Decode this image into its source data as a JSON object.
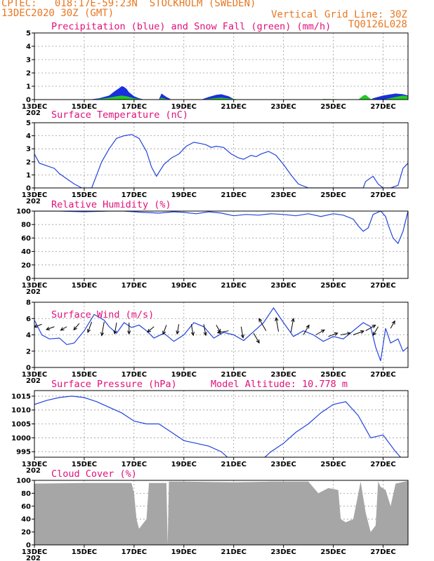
{
  "header": {
    "line1_left": "CPTEC:   018:17E-59:23N  STOCKHOLM (SWEDEN)",
    "line2_left": "13DEC2020 30Z (GMT)",
    "line2_right": "Vertical Grid Line: 30Z",
    "line3_right": "TQ0126L028"
  },
  "colors": {
    "header": "#e87722",
    "title": "#e0107a",
    "line": "#2244dd",
    "precip": "#1a2fe0",
    "snow": "#22cc22",
    "cloud": "#a6a6a6"
  },
  "x_axis": {
    "start": "13DEC2020 00Z",
    "range_days": [
      0,
      15
    ],
    "tick_days": [
      0,
      2,
      4,
      6,
      8,
      10,
      12,
      14
    ],
    "tick_labels": [
      "13DEC",
      "15DEC",
      "17DEC",
      "19DEC",
      "21DEC",
      "23DEC",
      "25DEC",
      "27DEC"
    ],
    "year_stub": "202"
  },
  "chart_data": [
    {
      "type": "area",
      "title": "Precipitation (blue) and Snow Fall (green) (mm/h)",
      "ylim": [
        0,
        5
      ],
      "y_ticks": [
        0,
        1,
        2,
        3,
        4,
        5
      ],
      "grid": true,
      "series": [
        {
          "name": "Precipitation",
          "color": "blue",
          "x": [
            0,
            0.5,
            2.2,
            2.6,
            3.0,
            3.2,
            3.4,
            3.5,
            3.6,
            3.7,
            3.8,
            4.0,
            4.2,
            4.4,
            5.0,
            5.1,
            5.3,
            5.5,
            6.7,
            7.0,
            7.3,
            7.5,
            7.8,
            8.0,
            8.3,
            13.5,
            13.6,
            14.0,
            14.5,
            14.8,
            15
          ],
          "y": [
            0,
            0,
            0,
            0.1,
            0.3,
            0.6,
            0.85,
            1.0,
            0.95,
            0.8,
            0.55,
            0.25,
            0.1,
            0,
            0,
            0.45,
            0.2,
            0,
            0,
            0.2,
            0.35,
            0.4,
            0.25,
            0.05,
            0,
            0,
            0.1,
            0.3,
            0.45,
            0.4,
            0.3
          ]
        },
        {
          "name": "Snow Fall",
          "color": "green",
          "x": [
            0,
            0.5,
            2.2,
            2.6,
            3.0,
            3.3,
            3.5,
            3.7,
            4.0,
            4.4,
            5.0,
            5.1,
            5.3,
            5.5,
            6.7,
            7.3,
            7.5,
            8.0,
            8.3,
            11.5,
            11.6,
            13.0,
            13.2,
            13.3,
            13.5,
            14.0,
            14.5,
            14.8,
            15
          ],
          "y": [
            0,
            0,
            0,
            0.05,
            0.15,
            0.25,
            0.3,
            0.25,
            0.1,
            0,
            0,
            0.15,
            0.05,
            0,
            0,
            0.12,
            0.15,
            0.05,
            0,
            0,
            0.05,
            0,
            0.3,
            0.35,
            0.05,
            0,
            0.2,
            0.3,
            0.25
          ]
        }
      ]
    },
    {
      "type": "line",
      "title": "Surface Temperature (nC)",
      "ylim": [
        0,
        5
      ],
      "y_ticks": [
        0,
        1,
        2,
        3,
        4,
        5
      ],
      "grid": true,
      "series": [
        {
          "color": "blue",
          "x": [
            0,
            0.2,
            0.5,
            0.8,
            1.0,
            1.3,
            1.6,
            1.9,
            2.3,
            2.7,
            3.0,
            3.3,
            3.6,
            3.9,
            4.2,
            4.5,
            4.7,
            4.9,
            5.2,
            5.5,
            5.8,
            6.1,
            6.4,
            6.7,
            6.9,
            7.1,
            7.3,
            7.6,
            7.9,
            8.2,
            8.4,
            8.7,
            8.9,
            9.1,
            9.4,
            9.7,
            10.0,
            10.3,
            10.6,
            11.0,
            13.0,
            13.2,
            13.3,
            13.6,
            13.8,
            14.0,
            14.3,
            14.6,
            14.8,
            15.0
          ],
          "y": [
            2.6,
            1.9,
            1.7,
            1.5,
            1.1,
            0.7,
            0.3,
            0,
            0,
            2.0,
            3.0,
            3.8,
            4.0,
            4.1,
            3.8,
            2.8,
            1.6,
            0.9,
            1.8,
            2.3,
            2.6,
            3.2,
            3.5,
            3.4,
            3.3,
            3.1,
            3.2,
            3.1,
            2.6,
            2.3,
            2.2,
            2.5,
            2.4,
            2.6,
            2.8,
            2.5,
            1.8,
            1.0,
            0.3,
            0,
            0,
            0,
            0.5,
            0.9,
            0.3,
            0,
            0,
            0.2,
            1.5,
            1.9
          ]
        }
      ]
    },
    {
      "type": "line",
      "title": "Relative Humidity (%)",
      "ylim": [
        0,
        100
      ],
      "y_ticks": [
        0,
        20,
        40,
        60,
        80,
        100
      ],
      "grid": true,
      "series": [
        {
          "color": "blue",
          "x": [
            0,
            1.0,
            2.0,
            3.0,
            3.6,
            4.0,
            4.4,
            5.0,
            5.6,
            6.0,
            6.5,
            7.0,
            7.5,
            8.0,
            8.5,
            9.0,
            9.5,
            10.0,
            10.5,
            11.0,
            11.5,
            12.0,
            12.4,
            12.8,
            13.0,
            13.2,
            13.4,
            13.6,
            13.9,
            14.1,
            14.2,
            14.4,
            14.6,
            14.8,
            15.0
          ],
          "y": [
            100,
            100,
            99,
            100,
            100,
            99,
            98,
            97,
            99,
            98,
            96,
            99,
            97,
            93,
            95,
            94,
            96,
            95,
            93,
            96,
            92,
            96,
            94,
            88,
            78,
            70,
            75,
            95,
            100,
            92,
            80,
            60,
            52,
            70,
            100
          ]
        }
      ]
    },
    {
      "type": "line",
      "title": "Surface Wind (m/s)",
      "ylim": [
        0,
        8
      ],
      "y_ticks": [
        0,
        2,
        4,
        6,
        8
      ],
      "grid": true,
      "series": [
        {
          "color": "blue",
          "x": [
            0,
            0.3,
            0.6,
            1.0,
            1.3,
            1.6,
            2.0,
            2.4,
            2.8,
            3.0,
            3.3,
            3.6,
            3.9,
            4.2,
            4.5,
            4.8,
            5.2,
            5.6,
            6.0,
            6.4,
            6.8,
            7.2,
            7.6,
            8.0,
            8.4,
            8.8,
            9.2,
            9.6,
            10.0,
            10.4,
            10.8,
            11.2,
            11.6,
            12.0,
            12.4,
            12.8,
            13.2,
            13.5,
            13.7,
            13.9,
            14.1,
            14.3,
            14.6,
            14.8,
            15.0
          ],
          "y": [
            5.8,
            4.0,
            3.5,
            3.6,
            2.8,
            3.0,
            4.5,
            6.5,
            5.8,
            5.0,
            4.2,
            5.5,
            4.9,
            5.2,
            4.5,
            3.6,
            4.2,
            3.2,
            4.0,
            5.5,
            5.0,
            3.6,
            4.3,
            4.0,
            3.3,
            4.4,
            5.5,
            7.3,
            5.5,
            3.8,
            4.5,
            4.0,
            3.2,
            3.8,
            3.5,
            4.5,
            5.5,
            5.0,
            2.5,
            0.8,
            4.8,
            3.0,
            3.5,
            2.0,
            2.5
          ]
        }
      ],
      "arrows": {
        "x": [
          0.3,
          0.8,
          1.3,
          1.8,
          2.3,
          2.8,
          3.3,
          3.8,
          4.8,
          5.3,
          5.8,
          6.3,
          6.8,
          7.3,
          7.8,
          8.3,
          8.8,
          9.3,
          9.8,
          10.3,
          10.8,
          11.3,
          11.8,
          12.3,
          12.8,
          13.3,
          13.8,
          14.3
        ],
        "y": [
          5.3,
          5.0,
          5.0,
          5.4,
          5.6,
          5.6,
          5.5,
          5.5,
          5.0,
          5.2,
          5.3,
          5.3,
          5.3,
          5.2,
          4.5,
          5.0,
          4.2,
          4.5,
          4.4,
          4.3,
          4.0,
          4.0,
          3.8,
          4.0,
          4.0,
          4.5,
          5.0,
          4.8
        ],
        "dir_deg": [
          160,
          160,
          150,
          130,
          110,
          100,
          100,
          90,
          140,
          110,
          100,
          80,
          80,
          60,
          170,
          80,
          60,
          240,
          260,
          280,
          300,
          330,
          340,
          350,
          340,
          330,
          120,
          300
        ],
        "len_ms": [
          3,
          3,
          2.5,
          3,
          4,
          5,
          4,
          4,
          3,
          3.5,
          3.5,
          4,
          4,
          3,
          4,
          4,
          4,
          5,
          5,
          5,
          4,
          3.5,
          3.5,
          3.5,
          4,
          4,
          3.5,
          3
        ]
      }
    },
    {
      "type": "line",
      "title": "Surface Pressure (hPa)",
      "annotation": "Model Altitude: 10.778 m",
      "ylim": [
        993,
        1017
      ],
      "y_ticks": [
        995,
        1000,
        1005,
        1010,
        1015
      ],
      "grid": true,
      "series": [
        {
          "color": "blue",
          "x": [
            0,
            0.5,
            1.0,
            1.5,
            2.0,
            2.5,
            3.0,
            3.5,
            4.0,
            4.5,
            5.0,
            5.5,
            6.0,
            6.5,
            7.0,
            7.5,
            8.0,
            8.5,
            9.0,
            9.5,
            10.0,
            10.5,
            11.0,
            11.5,
            12.0,
            12.5,
            13.0,
            13.5,
            14.0,
            14.5,
            15.0
          ],
          "y": [
            1012,
            1013.5,
            1014.5,
            1015,
            1014.5,
            1013,
            1011,
            1009,
            1006,
            1005,
            1005,
            1002,
            999,
            998,
            997,
            995,
            991,
            990,
            991,
            995,
            998,
            1002,
            1005,
            1009,
            1012,
            1013,
            1008,
            1000,
            1001,
            995,
            990
          ]
        }
      ]
    },
    {
      "type": "area",
      "title": "Cloud Cover (%)",
      "ylim": [
        0,
        100
      ],
      "y_ticks": [
        0,
        20,
        40,
        60,
        80,
        100
      ],
      "grid": true,
      "series": [
        {
          "color": "gray",
          "x": [
            0,
            2.0,
            3.9,
            4.0,
            4.1,
            4.2,
            4.3,
            4.5,
            4.6,
            5.3,
            5.35,
            5.4,
            6.0,
            8.0,
            9.5,
            11.0,
            11.4,
            11.8,
            12.2,
            12.3,
            12.5,
            12.8,
            13.1,
            13.3,
            13.5,
            13.7,
            13.8,
            13.9,
            14.1,
            14.3,
            14.5,
            15.0
          ],
          "y": [
            95,
            96,
            96,
            80,
            40,
            25,
            30,
            40,
            96,
            96,
            0,
            98,
            98,
            97,
            98,
            98,
            80,
            88,
            85,
            40,
            35,
            40,
            98,
            50,
            20,
            30,
            98,
            90,
            85,
            60,
            95,
            99
          ]
        }
      ]
    }
  ]
}
